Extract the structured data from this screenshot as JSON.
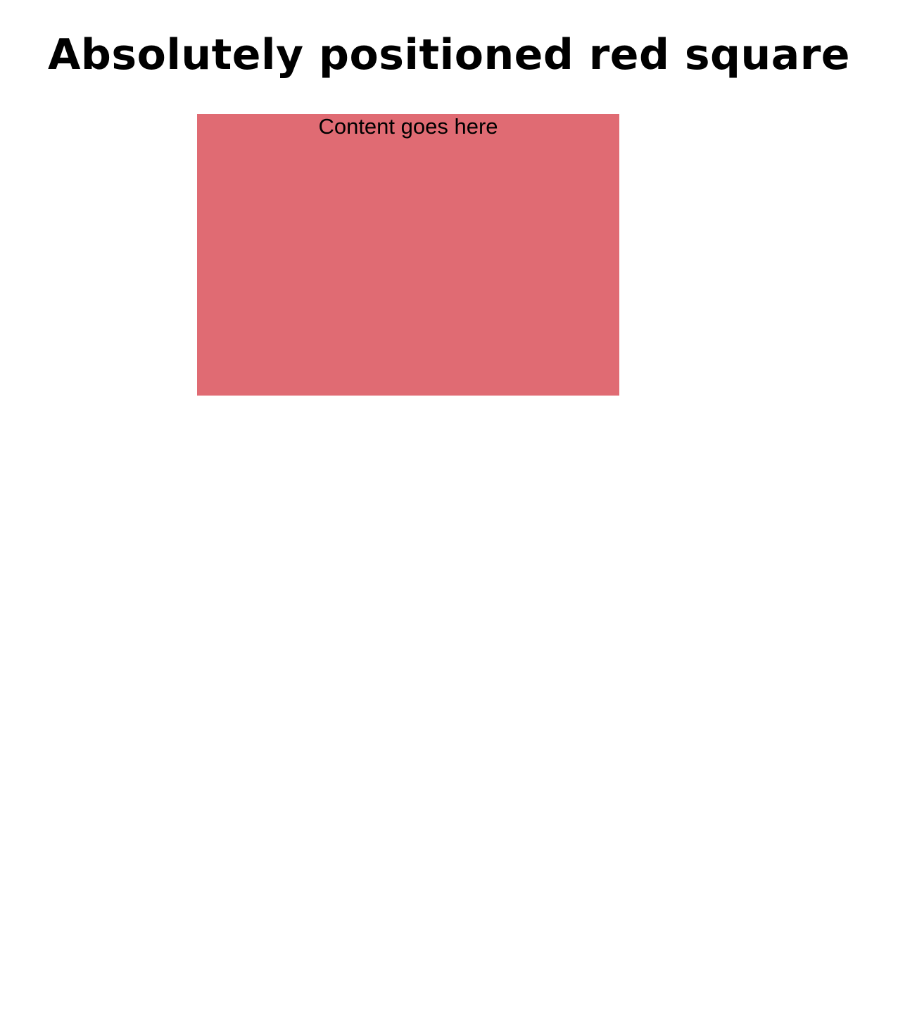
{
  "page": {
    "title": "Absolutely positioned red square"
  },
  "red_square": {
    "content": "Content goes here",
    "color": "#e06b73"
  }
}
